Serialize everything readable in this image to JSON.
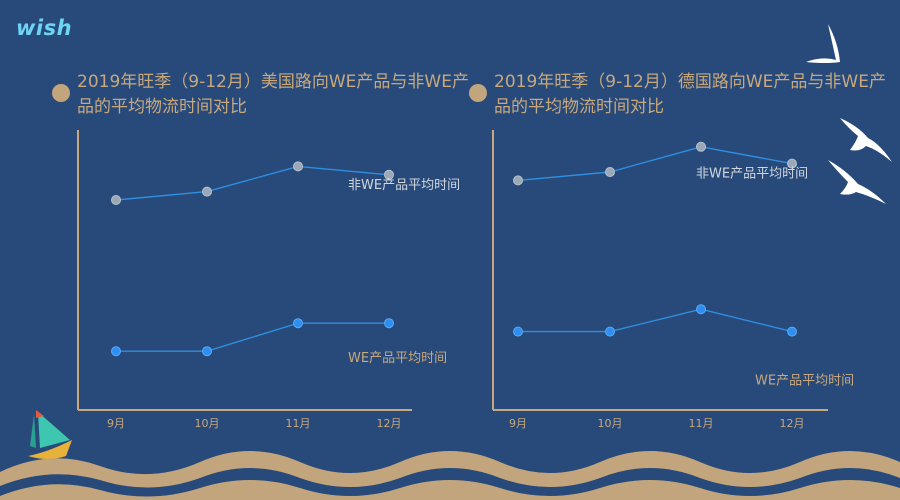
{
  "logo": {
    "text": "wish"
  },
  "colors": {
    "background": "#284a7a",
    "title": "#c8a87c",
    "axis": "#c8a87c",
    "series_line": "#2f8ee0",
    "non_we_point": "#9aa8b8",
    "we_point": "#2f8ff0",
    "series_label_non_we": "#d0d6de",
    "series_label_we": "#c8a87c",
    "wave": "#c2a57c"
  },
  "chart_data": [
    {
      "type": "line",
      "title": "2019年旺季（9-12月）美国路向WE产品与非WE产品的平均物流时间对比",
      "categories": [
        "9月",
        "10月",
        "11月",
        "12月"
      ],
      "ylim": [
        0,
        100
      ],
      "grid": false,
      "series": [
        {
          "name": "非WE产品平均时间",
          "values": [
            75,
            78,
            87,
            84
          ]
        },
        {
          "name": "WE产品平均时间",
          "values": [
            21,
            21,
            31,
            31
          ]
        }
      ]
    },
    {
      "type": "line",
      "title": "2019年旺季（9-12月）德国路向WE产品与非WE产品的平均物流时间对比",
      "categories": [
        "9月",
        "10月",
        "11月",
        "12月"
      ],
      "ylim": [
        0,
        100
      ],
      "grid": false,
      "series": [
        {
          "name": "非WE产品平均时间",
          "values": [
            82,
            85,
            94,
            88
          ]
        },
        {
          "name": "WE产品平均时间",
          "values": [
            28,
            28,
            36,
            28
          ]
        }
      ]
    }
  ]
}
